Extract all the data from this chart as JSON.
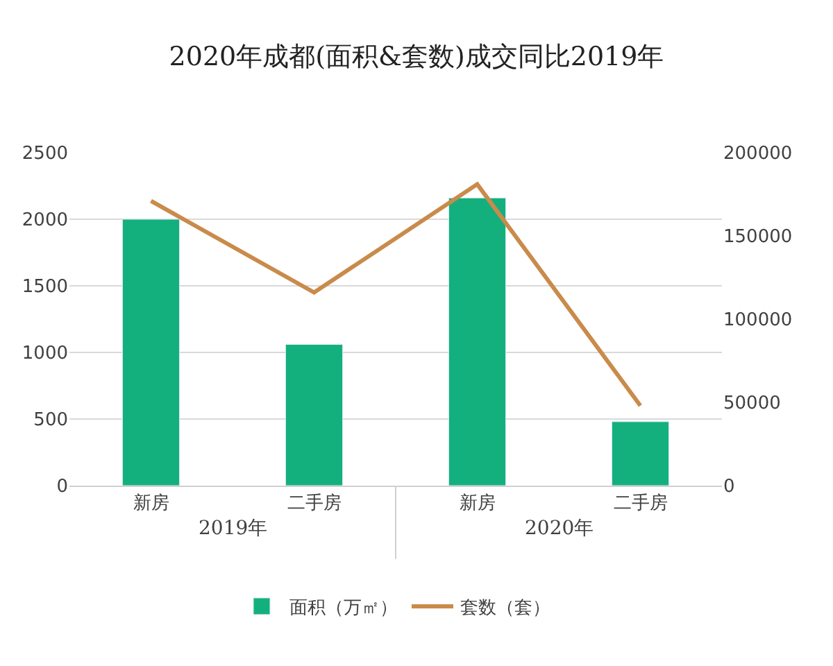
{
  "chart_data": {
    "type": "bar",
    "title": "2020年成都(面积&套数)成交同比2019年",
    "categories": [
      "新房",
      "二手房",
      "新房",
      "二手房"
    ],
    "series": [
      {
        "name": "面积（万㎡）",
        "color": "#13b07e",
        "values": [
          2000,
          1060,
          2160,
          480
        ]
      },
      {
        "name": "套数（套）",
        "type": "line",
        "axis": "y2",
        "color": "#c98b4b",
        "values": [
          171000,
          116000,
          181000,
          48000
        ]
      }
    ],
    "annotations": [
      "2019年",
      "2020年"
    ],
    "ylim": [
      0,
      2500
    ],
    "yticks": [
      0,
      500,
      1000,
      1500,
      2000,
      2500
    ],
    "y2lim": [
      0,
      200000
    ],
    "y2ticks": [
      0,
      50000,
      100000,
      150000,
      200000
    ],
    "grid": "y",
    "legend": "bottom",
    "marker": "none",
    "line_style": "solid"
  }
}
